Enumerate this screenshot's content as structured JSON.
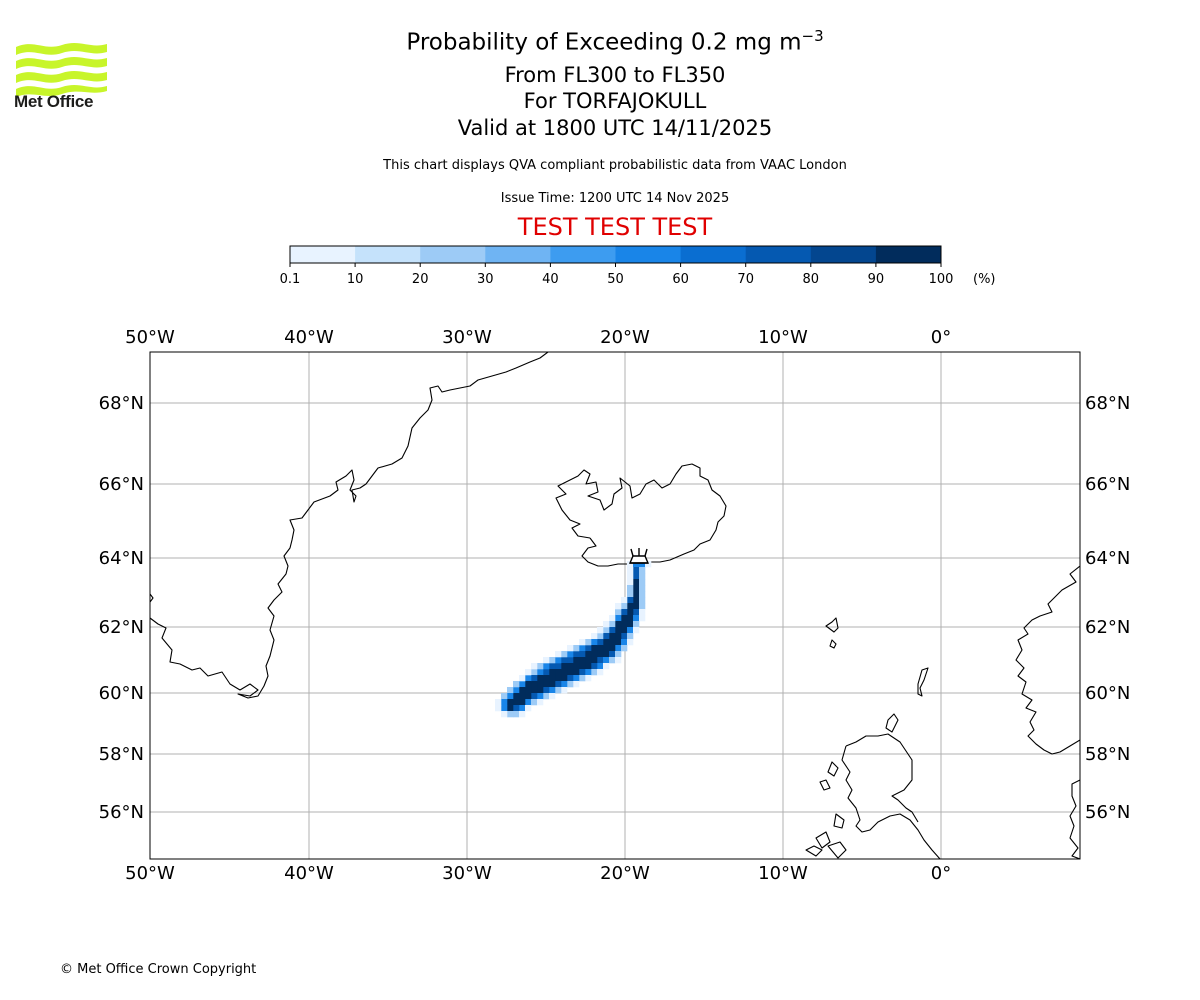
{
  "logo": {
    "name": "Met Office",
    "color": "#c8f52a"
  },
  "title": {
    "main_prefix": "Probability of Exceeding 0.2 mg m",
    "main_superscript": "−3",
    "levels": "From FL300 to FL350",
    "volcano": "For TORFAJOKULL",
    "valid": "Valid at 1800 UTC 14/11/2025"
  },
  "subtitle": "This chart displays QVA compliant probabilistic data from VAAC London",
  "issue_time": "Issue Time: 1200 UTC 14 Nov 2025",
  "test_banner": "TEST TEST TEST",
  "test_color": "#e00000",
  "colorbar": {
    "ticks": [
      "0.1",
      "10",
      "20",
      "30",
      "40",
      "50",
      "60",
      "70",
      "80",
      "90",
      "100"
    ],
    "unit": "(%)",
    "colors": [
      "#e8f3ff",
      "#c5e2fb",
      "#9dcbf6",
      "#6fb4f3",
      "#3d9cf0",
      "#1985e8",
      "#0a6ed1",
      "#0559b1",
      "#03468f",
      "#012c5c"
    ]
  },
  "map": {
    "lon_labels": [
      "50°W",
      "40°W",
      "30°W",
      "20°W",
      "10°W",
      "0°"
    ],
    "lat_labels": [
      "68°N",
      "66°N",
      "64°N",
      "62°N",
      "60°N",
      "58°N",
      "56°N"
    ],
    "volcano_symbol": "volcano-icon",
    "volcano_location": {
      "lon": -19.0,
      "lat": 63.9
    }
  },
  "copyright": "© Met Office Crown Copyright"
}
